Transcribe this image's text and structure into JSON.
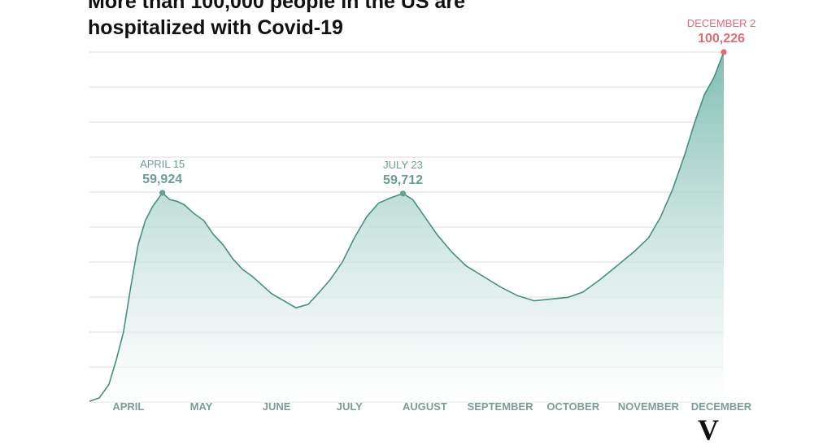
{
  "title_line1": "More than 100,000 people in the US are",
  "title_line2": "hospitalized with Covid-19",
  "logo_text": "V",
  "colors": {
    "line": "#4a8e81",
    "fill_top": "#7fbdb1",
    "grid": "#dcdcdc",
    "label": "#6a9e94",
    "peak": "#e06c75",
    "axis_text": "#7a9e97"
  },
  "chart_data": {
    "type": "area",
    "title": "More than 100,000 people in the US are hospitalized with Covid-19",
    "x_range": [
      "2020-03-16",
      "2020-12-02"
    ],
    "ylim": [
      0,
      100226
    ],
    "grid": true,
    "months": [
      {
        "label": "APRIL",
        "date": "2020-04-01"
      },
      {
        "label": "MAY",
        "date": "2020-05-01"
      },
      {
        "label": "JUNE",
        "date": "2020-06-01"
      },
      {
        "label": "JULY",
        "date": "2020-07-01"
      },
      {
        "label": "AUGUST",
        "date": "2020-08-01"
      },
      {
        "label": "SEPTEMBER",
        "date": "2020-09-01"
      },
      {
        "label": "OCTOBER",
        "date": "2020-10-01"
      },
      {
        "label": "NOVEMBER",
        "date": "2020-11-01"
      },
      {
        "label": "DECEMBER",
        "date": "2020-12-01"
      }
    ],
    "annotations": [
      {
        "label": "APRIL 15",
        "value_text": "59,924",
        "date": "2020-04-15",
        "value": 59924,
        "color": "#6a9e94"
      },
      {
        "label": "JULY 23",
        "value_text": "59,712",
        "date": "2020-07-23",
        "value": 59712,
        "color": "#6a9e94"
      },
      {
        "label": "DECEMBER 2",
        "value_text": "100,226",
        "date": "2020-12-02",
        "value": 100226,
        "color": "#e06c75"
      }
    ],
    "series": [
      {
        "points": [
          [
            "2020-03-16",
            200
          ],
          [
            "2020-03-20",
            1200
          ],
          [
            "2020-03-24",
            5000
          ],
          [
            "2020-03-27",
            12000
          ],
          [
            "2020-03-30",
            20000
          ],
          [
            "2020-04-02",
            33000
          ],
          [
            "2020-04-05",
            45000
          ],
          [
            "2020-04-08",
            52000
          ],
          [
            "2020-04-11",
            56000
          ],
          [
            "2020-04-15",
            59924
          ],
          [
            "2020-04-18",
            58000
          ],
          [
            "2020-04-21",
            57500
          ],
          [
            "2020-04-24",
            56500
          ],
          [
            "2020-04-28",
            54000
          ],
          [
            "2020-05-02",
            52000
          ],
          [
            "2020-05-06",
            48000
          ],
          [
            "2020-05-10",
            45000
          ],
          [
            "2020-05-14",
            41000
          ],
          [
            "2020-05-18",
            38000
          ],
          [
            "2020-05-22",
            36000
          ],
          [
            "2020-05-26",
            33500
          ],
          [
            "2020-05-30",
            31000
          ],
          [
            "2020-06-04",
            29000
          ],
          [
            "2020-06-09",
            27000
          ],
          [
            "2020-06-14",
            28000
          ],
          [
            "2020-06-18",
            31000
          ],
          [
            "2020-06-23",
            35000
          ],
          [
            "2020-06-28",
            40000
          ],
          [
            "2020-07-03",
            47000
          ],
          [
            "2020-07-08",
            53000
          ],
          [
            "2020-07-13",
            57000
          ],
          [
            "2020-07-18",
            58500
          ],
          [
            "2020-07-23",
            59712
          ],
          [
            "2020-07-27",
            58000
          ],
          [
            "2020-08-01",
            53000
          ],
          [
            "2020-08-06",
            48000
          ],
          [
            "2020-08-12",
            43000
          ],
          [
            "2020-08-18",
            39000
          ],
          [
            "2020-08-25",
            36000
          ],
          [
            "2020-09-01",
            33000
          ],
          [
            "2020-09-08",
            30500
          ],
          [
            "2020-09-15",
            29000
          ],
          [
            "2020-09-22",
            29500
          ],
          [
            "2020-09-29",
            30000
          ],
          [
            "2020-10-05",
            31500
          ],
          [
            "2020-10-12",
            35000
          ],
          [
            "2020-10-19",
            39000
          ],
          [
            "2020-10-26",
            43000
          ],
          [
            "2020-11-01",
            47000
          ],
          [
            "2020-11-06",
            53000
          ],
          [
            "2020-11-11",
            61000
          ],
          [
            "2020-11-16",
            71000
          ],
          [
            "2020-11-20",
            80000
          ],
          [
            "2020-11-24",
            88000
          ],
          [
            "2020-11-28",
            93000
          ],
          [
            "2020-12-02",
            100226
          ]
        ]
      }
    ]
  }
}
